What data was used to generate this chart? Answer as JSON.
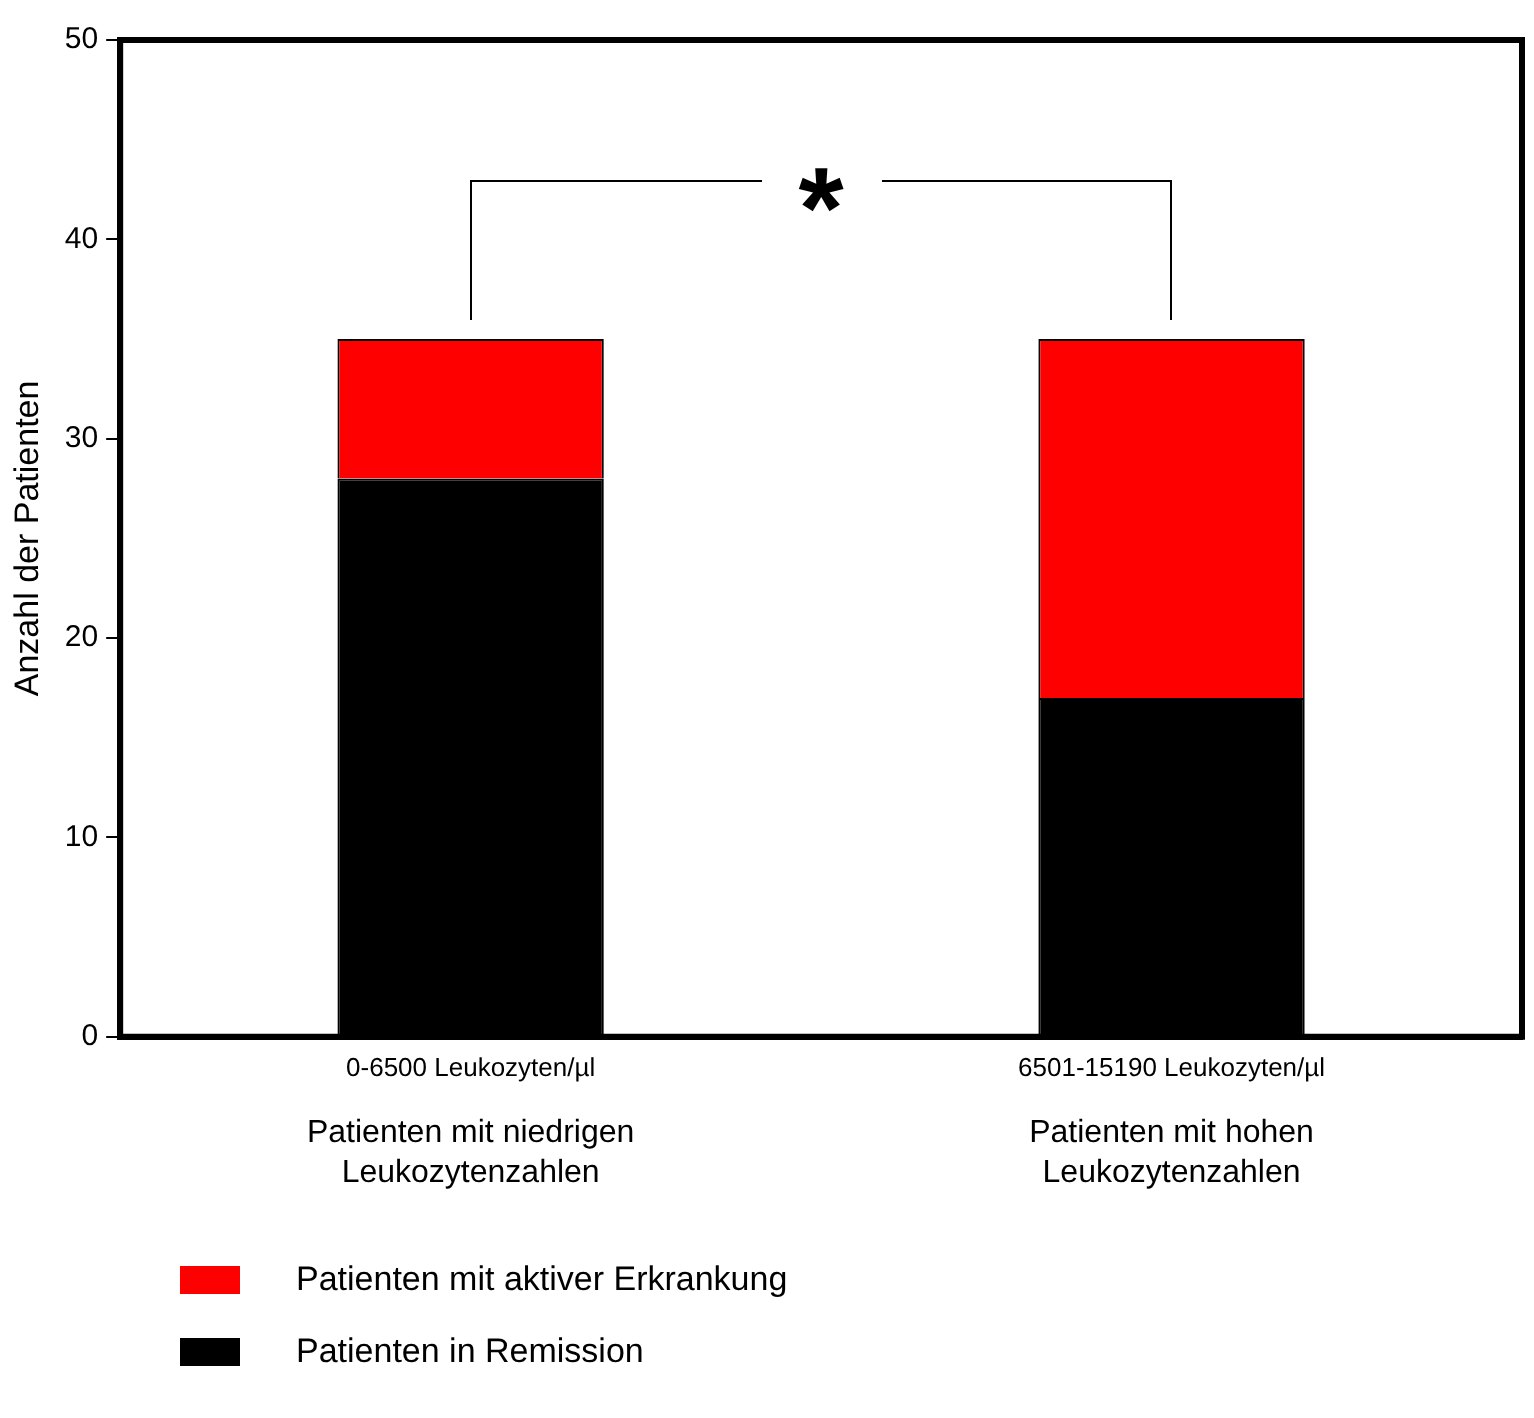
{
  "chart_data": {
    "type": "bar",
    "stacked": true,
    "ylabel": "Anzahl der Patienten",
    "categories": [
      "0-6500 Leukozyten/µl",
      "6501-15190 Leukozyten/µl"
    ],
    "series": [
      {
        "name": "Patienten in Remission",
        "color": "#000000",
        "values": [
          28,
          17
        ]
      },
      {
        "name": "Patienten mit aktiver Erkrankung",
        "color": "#ff0000",
        "values": [
          7,
          18
        ]
      }
    ],
    "ylim": [
      0,
      50
    ],
    "yticks": [
      0,
      10,
      20,
      30,
      40,
      50
    ],
    "grid": false,
    "legend": "bottom left",
    "annotations": [
      "Patienten mit niedrigen Leukozytenzahlen",
      "Patienten mit hohen Leukozytenzahlen",
      "*"
    ]
  }
}
